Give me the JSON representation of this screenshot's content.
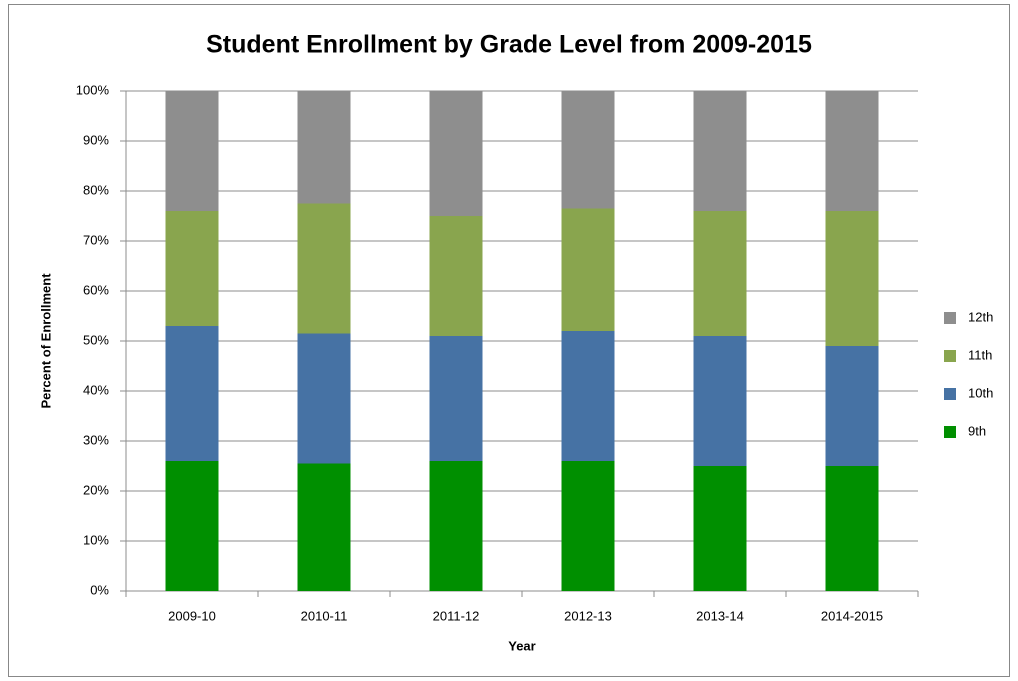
{
  "chart_data": {
    "type": "stacked_bar",
    "title": "Student Enrollment by Grade Level from 2009-2015",
    "x_label": "Year",
    "y_label": "Percent of Enrollment",
    "categories": [
      "2009-10",
      "2010-11",
      "2011-12",
      "2012-13",
      "2013-14",
      "2014-2015"
    ],
    "series": [
      {
        "name": "9th",
        "color": "#008f00",
        "values": [
          26,
          25.5,
          26,
          26,
          25,
          25
        ]
      },
      {
        "name": "10th",
        "color": "#4672a4",
        "values": [
          27,
          26,
          25,
          26,
          26,
          24
        ]
      },
      {
        "name": "11th",
        "color": "#89a54e",
        "values": [
          23,
          26,
          24,
          24.5,
          25,
          27
        ]
      },
      {
        "name": "12th",
        "color": "#8e8e8e",
        "values": [
          24,
          22.5,
          25,
          23.5,
          24,
          24
        ]
      }
    ],
    "ylim": [
      0,
      100
    ],
    "yticks": [
      {
        "value": 0,
        "label": "0%"
      },
      {
        "value": 10,
        "label": "10%"
      },
      {
        "value": 20,
        "label": "20%"
      },
      {
        "value": 30,
        "label": "30%"
      },
      {
        "value": 40,
        "label": "40%"
      },
      {
        "value": 50,
        "label": "50%"
      },
      {
        "value": 60,
        "label": "60%"
      },
      {
        "value": 70,
        "label": "70%"
      },
      {
        "value": 80,
        "label": "80%"
      },
      {
        "value": 90,
        "label": "90%"
      },
      {
        "value": 100,
        "label": "100%"
      }
    ],
    "grid": true,
    "legend": "right"
  }
}
